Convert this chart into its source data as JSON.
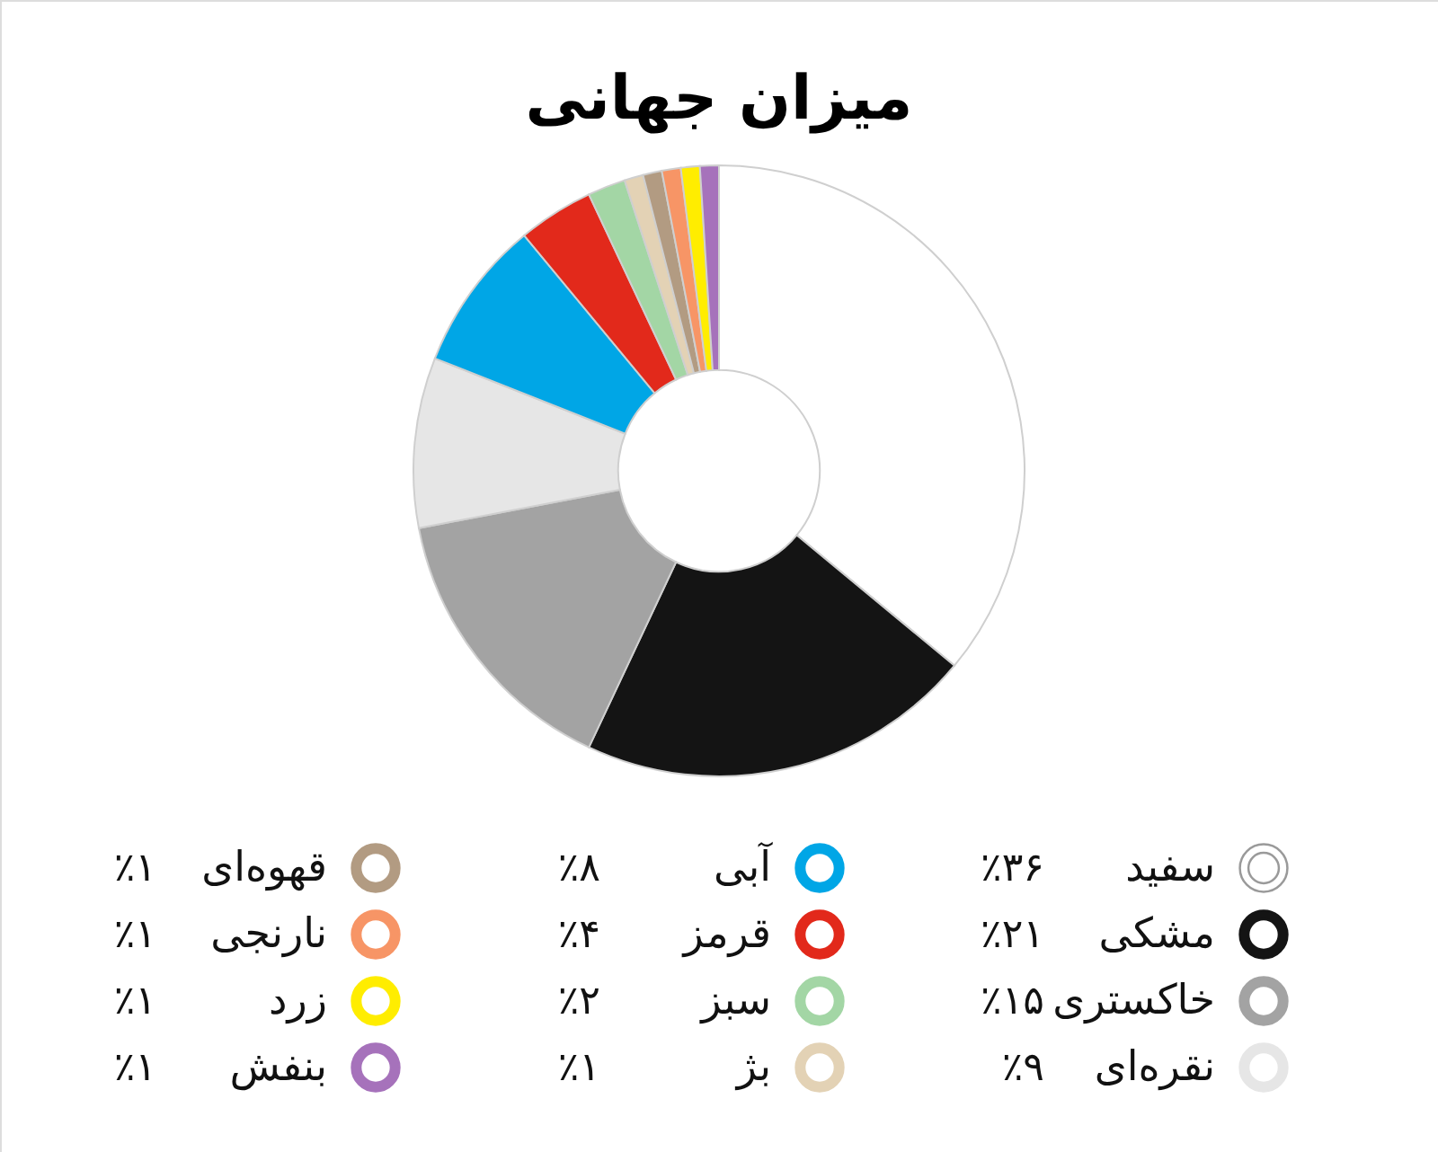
{
  "chart_data": {
    "type": "donut",
    "title": "میزان جهانی",
    "categories": [
      "سفید",
      "مشکی",
      "خاکستری",
      "نقره‌ای",
      "آبی",
      "قرمز",
      "سبز",
      "بژ",
      "قهوه‌ای",
      "نارنجی",
      "زرد",
      "بنفش"
    ],
    "values": [
      36,
      21,
      15,
      9,
      8,
      4,
      2,
      1,
      1,
      1,
      1,
      1
    ],
    "value_labels": [
      "٪۳۶",
      "٪۲۱",
      "٪۱۵",
      "٪۹",
      "٪۸",
      "٪۴",
      "٪۲",
      "٪۱",
      "٪۱",
      "٪۱",
      "٪۱",
      "٪۱"
    ],
    "colors": [
      "#ffffff",
      "#141414",
      "#a3a3a3",
      "#e6e6e6",
      "#00a6e6",
      "#e2291b",
      "#a3d6a5",
      "#e3d2b5",
      "#b29b82",
      "#f79566",
      "#ffed00",
      "#a672bb"
    ],
    "legend": "bottom"
  }
}
